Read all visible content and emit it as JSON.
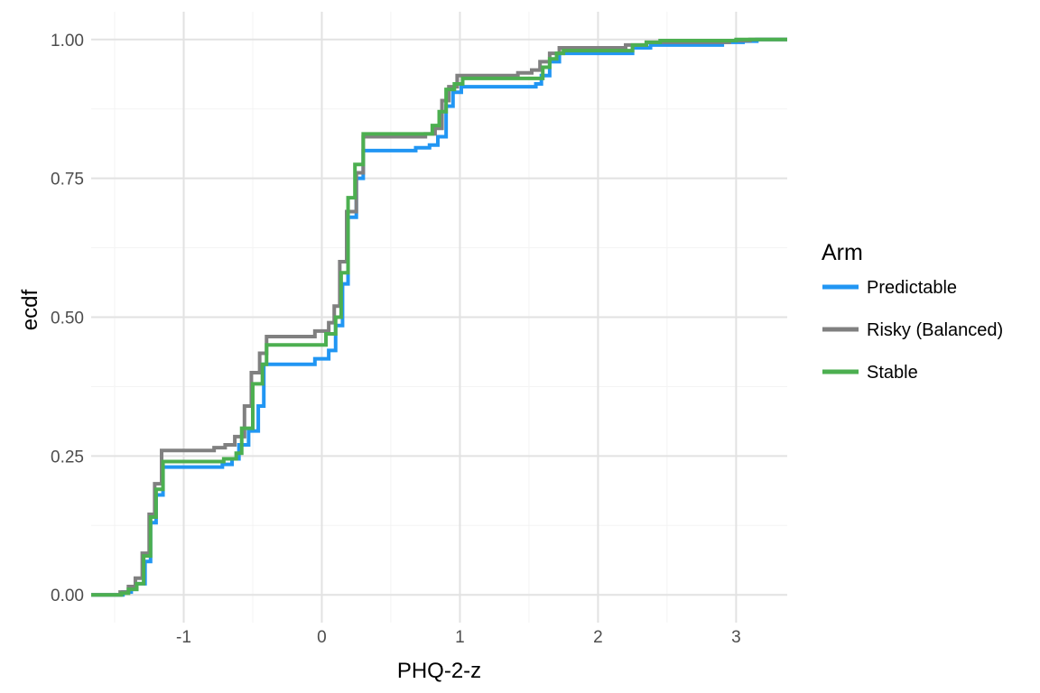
{
  "chart_data": {
    "type": "line",
    "step": true,
    "xlabel": "PHQ-2-z",
    "ylabel": "ecdf",
    "xlim": [
      -1.67,
      3.37
    ],
    "ylim": [
      -0.05,
      1.05
    ],
    "x_ticks": [
      -1,
      0,
      1,
      2,
      3
    ],
    "x_tick_labels": [
      "-1",
      "0",
      "1",
      "2",
      "3"
    ],
    "y_ticks": [
      0,
      0.25,
      0.5,
      0.75,
      1
    ],
    "y_tick_labels": [
      "0.00",
      "0.25",
      "0.50",
      "0.75",
      "1.00"
    ],
    "grid": true,
    "legend": {
      "title": "Arm",
      "position": "right"
    },
    "series": [
      {
        "name": "Predictable",
        "color": "#2196F3",
        "points": [
          [
            -1.67,
            0.0
          ],
          [
            -1.44,
            0.0
          ],
          [
            -1.44,
            0.005
          ],
          [
            -1.38,
            0.005
          ],
          [
            -1.38,
            0.01
          ],
          [
            -1.34,
            0.01
          ],
          [
            -1.34,
            0.02
          ],
          [
            -1.28,
            0.02
          ],
          [
            -1.28,
            0.06
          ],
          [
            -1.24,
            0.06
          ],
          [
            -1.24,
            0.13
          ],
          [
            -1.2,
            0.13
          ],
          [
            -1.2,
            0.18
          ],
          [
            -1.15,
            0.18
          ],
          [
            -1.15,
            0.23
          ],
          [
            -0.72,
            0.23
          ],
          [
            -0.72,
            0.235
          ],
          [
            -0.65,
            0.235
          ],
          [
            -0.65,
            0.245
          ],
          [
            -0.6,
            0.245
          ],
          [
            -0.6,
            0.27
          ],
          [
            -0.53,
            0.27
          ],
          [
            -0.53,
            0.295
          ],
          [
            -0.46,
            0.295
          ],
          [
            -0.46,
            0.34
          ],
          [
            -0.42,
            0.34
          ],
          [
            -0.42,
            0.415
          ],
          [
            -0.05,
            0.415
          ],
          [
            -0.05,
            0.425
          ],
          [
            0.05,
            0.425
          ],
          [
            0.05,
            0.44
          ],
          [
            0.1,
            0.44
          ],
          [
            0.1,
            0.485
          ],
          [
            0.15,
            0.485
          ],
          [
            0.15,
            0.56
          ],
          [
            0.19,
            0.56
          ],
          [
            0.19,
            0.68
          ],
          [
            0.25,
            0.68
          ],
          [
            0.25,
            0.75
          ],
          [
            0.3,
            0.75
          ],
          [
            0.3,
            0.8
          ],
          [
            0.68,
            0.8
          ],
          [
            0.68,
            0.805
          ],
          [
            0.78,
            0.805
          ],
          [
            0.78,
            0.81
          ],
          [
            0.84,
            0.81
          ],
          [
            0.84,
            0.825
          ],
          [
            0.9,
            0.825
          ],
          [
            0.9,
            0.88
          ],
          [
            0.95,
            0.88
          ],
          [
            0.95,
            0.905
          ],
          [
            1.01,
            0.905
          ],
          [
            1.01,
            0.915
          ],
          [
            1.55,
            0.915
          ],
          [
            1.55,
            0.92
          ],
          [
            1.59,
            0.92
          ],
          [
            1.59,
            0.935
          ],
          [
            1.65,
            0.935
          ],
          [
            1.65,
            0.96
          ],
          [
            1.72,
            0.96
          ],
          [
            1.72,
            0.975
          ],
          [
            2.25,
            0.975
          ],
          [
            2.25,
            0.985
          ],
          [
            2.38,
            0.985
          ],
          [
            2.38,
            0.99
          ],
          [
            2.9,
            0.99
          ],
          [
            2.9,
            0.995
          ],
          [
            3.05,
            0.995
          ],
          [
            3.05,
            0.997
          ],
          [
            3.15,
            0.997
          ],
          [
            3.15,
            1.0
          ],
          [
            3.37,
            1.0
          ]
        ]
      },
      {
        "name": "Risky (Balanced)",
        "color": "#808080",
        "points": [
          [
            -1.67,
            0.0
          ],
          [
            -1.46,
            0.0
          ],
          [
            -1.46,
            0.005
          ],
          [
            -1.4,
            0.005
          ],
          [
            -1.4,
            0.015
          ],
          [
            -1.35,
            0.015
          ],
          [
            -1.35,
            0.03
          ],
          [
            -1.3,
            0.03
          ],
          [
            -1.3,
            0.075
          ],
          [
            -1.25,
            0.075
          ],
          [
            -1.25,
            0.145
          ],
          [
            -1.21,
            0.145
          ],
          [
            -1.21,
            0.2
          ],
          [
            -1.16,
            0.2
          ],
          [
            -1.16,
            0.26
          ],
          [
            -0.78,
            0.26
          ],
          [
            -0.78,
            0.265
          ],
          [
            -0.7,
            0.265
          ],
          [
            -0.7,
            0.27
          ],
          [
            -0.63,
            0.27
          ],
          [
            -0.63,
            0.285
          ],
          [
            -0.56,
            0.285
          ],
          [
            -0.56,
            0.34
          ],
          [
            -0.51,
            0.34
          ],
          [
            -0.51,
            0.4
          ],
          [
            -0.45,
            0.4
          ],
          [
            -0.45,
            0.435
          ],
          [
            -0.4,
            0.435
          ],
          [
            -0.4,
            0.465
          ],
          [
            -0.05,
            0.465
          ],
          [
            -0.05,
            0.475
          ],
          [
            0.05,
            0.475
          ],
          [
            0.05,
            0.49
          ],
          [
            0.09,
            0.49
          ],
          [
            0.09,
            0.52
          ],
          [
            0.13,
            0.52
          ],
          [
            0.13,
            0.6
          ],
          [
            0.18,
            0.6
          ],
          [
            0.18,
            0.69
          ],
          [
            0.25,
            0.69
          ],
          [
            0.25,
            0.76
          ],
          [
            0.3,
            0.76
          ],
          [
            0.3,
            0.825
          ],
          [
            0.75,
            0.825
          ],
          [
            0.75,
            0.83
          ],
          [
            0.82,
            0.83
          ],
          [
            0.82,
            0.84
          ],
          [
            0.87,
            0.84
          ],
          [
            0.87,
            0.89
          ],
          [
            0.92,
            0.89
          ],
          [
            0.92,
            0.915
          ],
          [
            0.98,
            0.915
          ],
          [
            0.98,
            0.935
          ],
          [
            1.42,
            0.935
          ],
          [
            1.42,
            0.94
          ],
          [
            1.52,
            0.94
          ],
          [
            1.52,
            0.945
          ],
          [
            1.58,
            0.945
          ],
          [
            1.58,
            0.96
          ],
          [
            1.65,
            0.96
          ],
          [
            1.65,
            0.975
          ],
          [
            1.72,
            0.975
          ],
          [
            1.72,
            0.985
          ],
          [
            2.2,
            0.985
          ],
          [
            2.2,
            0.99
          ],
          [
            2.35,
            0.99
          ],
          [
            2.35,
            0.995
          ],
          [
            2.95,
            0.995
          ],
          [
            2.95,
            0.998
          ],
          [
            3.1,
            0.998
          ],
          [
            3.1,
            1.0
          ],
          [
            3.37,
            1.0
          ]
        ]
      },
      {
        "name": "Stable",
        "color": "#4CAF50",
        "points": [
          [
            -1.67,
            0.0
          ],
          [
            -1.45,
            0.0
          ],
          [
            -1.45,
            0.003
          ],
          [
            -1.4,
            0.003
          ],
          [
            -1.4,
            0.01
          ],
          [
            -1.34,
            0.01
          ],
          [
            -1.34,
            0.02
          ],
          [
            -1.29,
            0.02
          ],
          [
            -1.29,
            0.07
          ],
          [
            -1.24,
            0.07
          ],
          [
            -1.24,
            0.14
          ],
          [
            -1.2,
            0.14
          ],
          [
            -1.2,
            0.19
          ],
          [
            -1.15,
            0.19
          ],
          [
            -1.15,
            0.24
          ],
          [
            -0.71,
            0.24
          ],
          [
            -0.71,
            0.245
          ],
          [
            -0.62,
            0.245
          ],
          [
            -0.62,
            0.255
          ],
          [
            -0.58,
            0.255
          ],
          [
            -0.58,
            0.3
          ],
          [
            -0.5,
            0.3
          ],
          [
            -0.5,
            0.38
          ],
          [
            -0.43,
            0.38
          ],
          [
            -0.43,
            0.415
          ],
          [
            -0.4,
            0.415
          ],
          [
            -0.4,
            0.45
          ],
          [
            0.03,
            0.45
          ],
          [
            0.03,
            0.47
          ],
          [
            0.1,
            0.47
          ],
          [
            0.1,
            0.5
          ],
          [
            0.14,
            0.5
          ],
          [
            0.14,
            0.58
          ],
          [
            0.19,
            0.58
          ],
          [
            0.19,
            0.715
          ],
          [
            0.24,
            0.715
          ],
          [
            0.24,
            0.775
          ],
          [
            0.3,
            0.775
          ],
          [
            0.3,
            0.83
          ],
          [
            0.8,
            0.83
          ],
          [
            0.8,
            0.845
          ],
          [
            0.85,
            0.845
          ],
          [
            0.85,
            0.87
          ],
          [
            0.9,
            0.87
          ],
          [
            0.9,
            0.91
          ],
          [
            0.96,
            0.91
          ],
          [
            0.96,
            0.92
          ],
          [
            1.02,
            0.92
          ],
          [
            1.02,
            0.93
          ],
          [
            1.6,
            0.93
          ],
          [
            1.6,
            0.95
          ],
          [
            1.65,
            0.95
          ],
          [
            1.65,
            0.965
          ],
          [
            1.7,
            0.965
          ],
          [
            1.7,
            0.975
          ],
          [
            1.75,
            0.975
          ],
          [
            1.75,
            0.98
          ],
          [
            2.25,
            0.98
          ],
          [
            2.25,
            0.99
          ],
          [
            2.35,
            0.99
          ],
          [
            2.35,
            0.995
          ],
          [
            2.45,
            0.995
          ],
          [
            2.45,
            0.998
          ],
          [
            3.0,
            0.998
          ],
          [
            3.0,
            1.0
          ],
          [
            3.37,
            1.0
          ]
        ]
      }
    ]
  }
}
